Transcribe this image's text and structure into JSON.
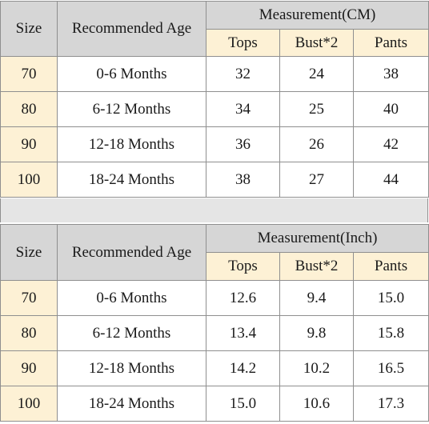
{
  "tables": [
    {
      "headers": {
        "size": "Size",
        "age": "Recommended Age",
        "measurement": "Measurement(CM)",
        "tops": "Tops",
        "bust": "Bust*2",
        "pants": "Pants"
      },
      "rows": [
        {
          "size": "70",
          "age": "0-6 Months",
          "tops": "32",
          "bust": "24",
          "pants": "38"
        },
        {
          "size": "80",
          "age": "6-12 Months",
          "tops": "34",
          "bust": "25",
          "pants": "40"
        },
        {
          "size": "90",
          "age": "12-18 Months",
          "tops": "36",
          "bust": "26",
          "pants": "42"
        },
        {
          "size": "100",
          "age": "18-24 Months",
          "tops": "38",
          "bust": "27",
          "pants": "44"
        }
      ]
    },
    {
      "headers": {
        "size": "Size",
        "age": "Recommended Age",
        "measurement": "Measurement(Inch)",
        "tops": "Tops",
        "bust": "Bust*2",
        "pants": "Pants"
      },
      "rows": [
        {
          "size": "70",
          "age": "0-6 Months",
          "tops": "12.6",
          "bust": "9.4",
          "pants": "15.0"
        },
        {
          "size": "80",
          "age": "6-12 Months",
          "tops": "13.4",
          "bust": "9.8",
          "pants": "15.8"
        },
        {
          "size": "90",
          "age": "12-18 Months",
          "tops": "14.2",
          "bust": "10.2",
          "pants": "16.5"
        },
        {
          "size": "100",
          "age": "18-24 Months",
          "tops": "15.0",
          "bust": "10.6",
          "pants": "17.3"
        }
      ]
    }
  ],
  "colors": {
    "header": "#d6d6d6",
    "highlight": "#fdf1d5",
    "border": "#8f8f8f",
    "gap": "#e5e5e5"
  }
}
